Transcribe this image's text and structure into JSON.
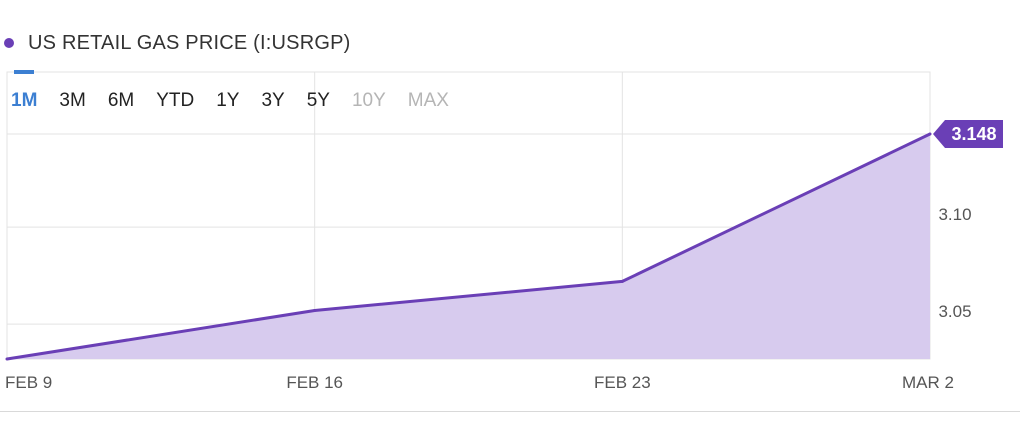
{
  "legend": {
    "title": "US RETAIL GAS PRICE (I:USRGP)",
    "dot_color": "#6a3fb6"
  },
  "range_selector": {
    "active": "1M",
    "options": [
      {
        "label": "1M",
        "state": "active"
      },
      {
        "label": "3M",
        "state": "enabled"
      },
      {
        "label": "6M",
        "state": "enabled"
      },
      {
        "label": "YTD",
        "state": "enabled"
      },
      {
        "label": "1Y",
        "state": "enabled"
      },
      {
        "label": "3Y",
        "state": "enabled"
      },
      {
        "label": "5Y",
        "state": "enabled"
      },
      {
        "label": "10Y",
        "state": "disabled"
      },
      {
        "label": "MAX",
        "state": "disabled"
      }
    ]
  },
  "chart_data": {
    "type": "area",
    "x": [
      "2021-02-09",
      "2021-02-16",
      "2021-02-23",
      "2021-03-02"
    ],
    "x_tick_labels": [
      "FEB 9",
      "FEB 16",
      "FEB 23",
      "MAR 2"
    ],
    "series": [
      {
        "values": [
          3.032,
          3.057,
          3.072,
          3.148
        ],
        "line_color": "#6a3fb6",
        "fill_color": "#d7cbee"
      }
    ],
    "ylim": [
      3.032,
      3.148
    ],
    "y_ticks": [
      3.05,
      3.1
    ],
    "y_tick_labels": [
      "3.05",
      "3.10"
    ],
    "last_value_label": "3.148",
    "grid": true,
    "y_axis_position": "right"
  }
}
